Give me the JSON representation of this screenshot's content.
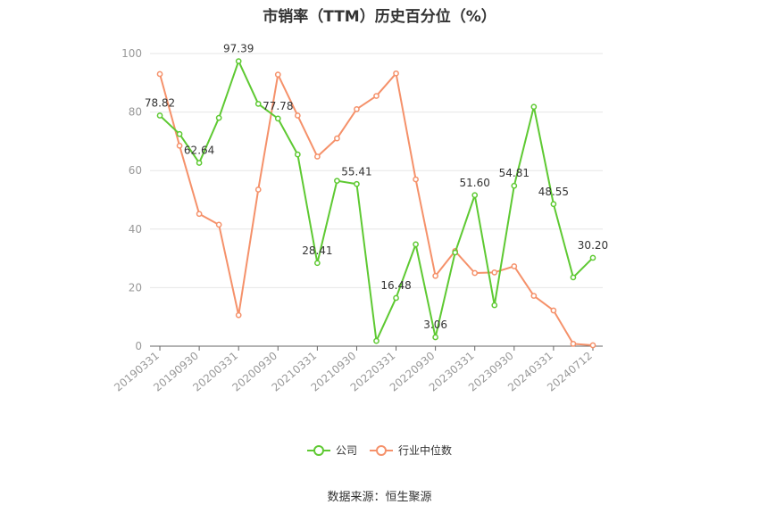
{
  "title": "市销率（TTM）历史百分位（%）",
  "source": "数据来源：恒生聚源",
  "legend": [
    {
      "label": "公司",
      "color": "#5ec932"
    },
    {
      "label": "行业中位数",
      "color": "#f5916a"
    }
  ],
  "chart_data": {
    "type": "line",
    "title": "市销率（TTM）历史百分位（%）",
    "ylim": [
      0,
      100
    ],
    "yticks": [
      0,
      20,
      40,
      60,
      80,
      100
    ],
    "grid": true,
    "legend_position": "bottom",
    "x": [
      "20190331",
      "20190630",
      "20190930",
      "20191231",
      "20200331",
      "20200630",
      "20200930",
      "20201231",
      "20210331",
      "20210630",
      "20210930",
      "20211231",
      "20220331",
      "20220630",
      "20220930",
      "20221231",
      "20230331",
      "20230630",
      "20230930",
      "20231231",
      "20240331",
      "20240630",
      "20240712"
    ],
    "xtick_labels": [
      "20190331",
      "20190930",
      "20200331",
      "20200930",
      "20210331",
      "20210930",
      "20220331",
      "20220930",
      "20230331",
      "20230930",
      "20240331",
      "20240712"
    ],
    "series": [
      {
        "name": "公司",
        "color": "#5ec932",
        "values": [
          78.82,
          72.5,
          62.64,
          78.0,
          97.39,
          82.8,
          77.78,
          65.5,
          28.41,
          56.5,
          55.41,
          1.8,
          16.48,
          34.8,
          3.06,
          32.0,
          51.6,
          14.0,
          54.81,
          81.8,
          48.55,
          23.5,
          30.2
        ],
        "labels": {
          "0": "78.82",
          "2": "62.64",
          "4": "97.39",
          "6": "77.78",
          "8": "28.41",
          "10": "55.41",
          "12": "16.48",
          "14": "3.06",
          "16": "51.60",
          "18": "54.81",
          "20": "48.55",
          "22": "30.20"
        }
      },
      {
        "name": "行业中位数",
        "color": "#f5916a",
        "values": [
          93.0,
          68.5,
          45.2,
          41.5,
          10.6,
          53.5,
          92.8,
          78.8,
          64.8,
          71.0,
          81.0,
          85.5,
          93.2,
          57.0,
          24.0,
          32.5,
          25.0,
          25.2,
          27.3,
          17.2,
          12.2,
          0.8,
          0.3
        ]
      }
    ]
  }
}
